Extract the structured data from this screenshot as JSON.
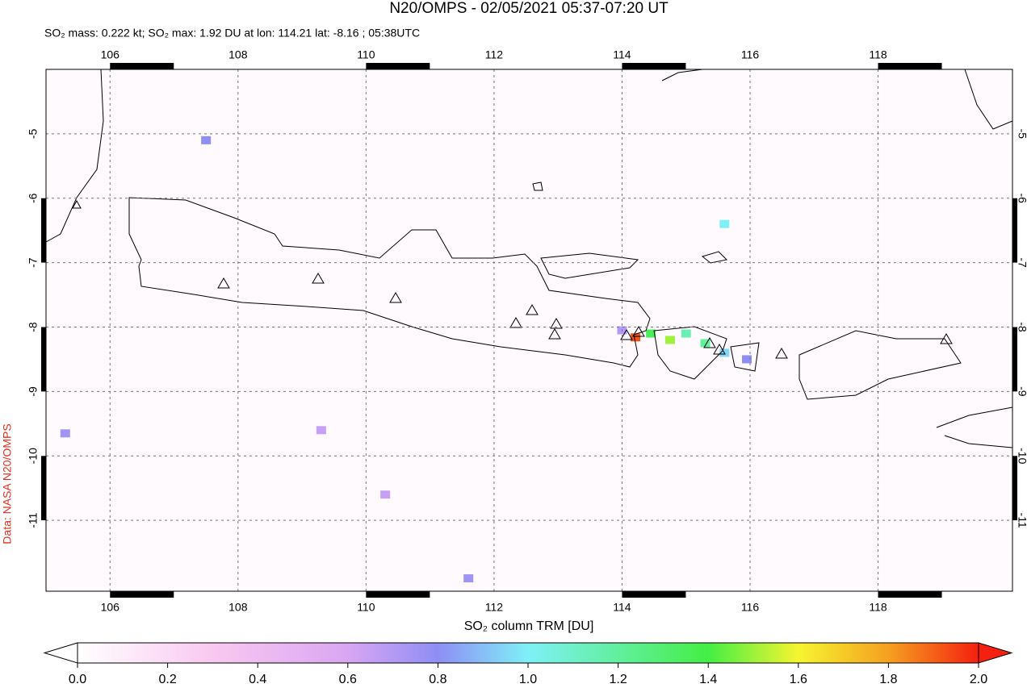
{
  "chart_data": {
    "type": "map",
    "title": "N20/OMPS - 02/05/2021 05:37-07:20 UT",
    "subtitle": "SO₂ mass: 0.222 kt; SO₂ max: 1.92 DU at lon: 114.21 lat: -8.16 ; 05:38UTC",
    "credit": "Data: NASA N20/OMPS",
    "xlim": [
      105,
      120.1
    ],
    "ylim": [
      -4,
      -12.1
    ],
    "xticks": [
      106,
      108,
      110,
      112,
      114,
      116,
      118
    ],
    "yticks": [
      -5,
      -6,
      -7,
      -8,
      -9,
      -10,
      -11
    ],
    "grid": true,
    "pixels": {
      "lon": [
        114.21,
        114.45,
        114.75,
        115.0,
        115.3,
        115.6,
        115.95,
        114.0,
        115.6,
        107.5,
        105.3,
        109.3,
        110.3,
        111.6
      ],
      "lat": [
        -8.16,
        -8.1,
        -8.2,
        -8.1,
        -8.25,
        -8.4,
        -8.5,
        -8.05,
        -6.4,
        -5.1,
        -9.65,
        -9.6,
        -10.6,
        -11.9
      ],
      "values": [
        1.92,
        1.35,
        1.5,
        1.15,
        1.2,
        0.95,
        0.8,
        0.7,
        1.0,
        0.8,
        0.75,
        0.65,
        0.65,
        0.75
      ]
    },
    "colorbar": {
      "label": "SO₂ column TRM [DU]",
      "lim": [
        0,
        2
      ],
      "ticks": [
        {
          "value": 0,
          "label": "0.0"
        },
        {
          "value": 0.2,
          "label": "0.2"
        },
        {
          "value": 0.4,
          "label": "0.4"
        },
        {
          "value": 0.6,
          "label": "0.6"
        },
        {
          "value": 0.8,
          "label": "0.8"
        },
        {
          "value": 1.0,
          "label": "1.0"
        },
        {
          "value": 1.2,
          "label": "1.2"
        },
        {
          "value": 1.4,
          "label": "1.4"
        },
        {
          "value": 1.6,
          "label": "1.6"
        },
        {
          "value": 1.8,
          "label": "1.8"
        },
        {
          "value": 2.0,
          "label": "2.0"
        }
      ]
    }
  }
}
